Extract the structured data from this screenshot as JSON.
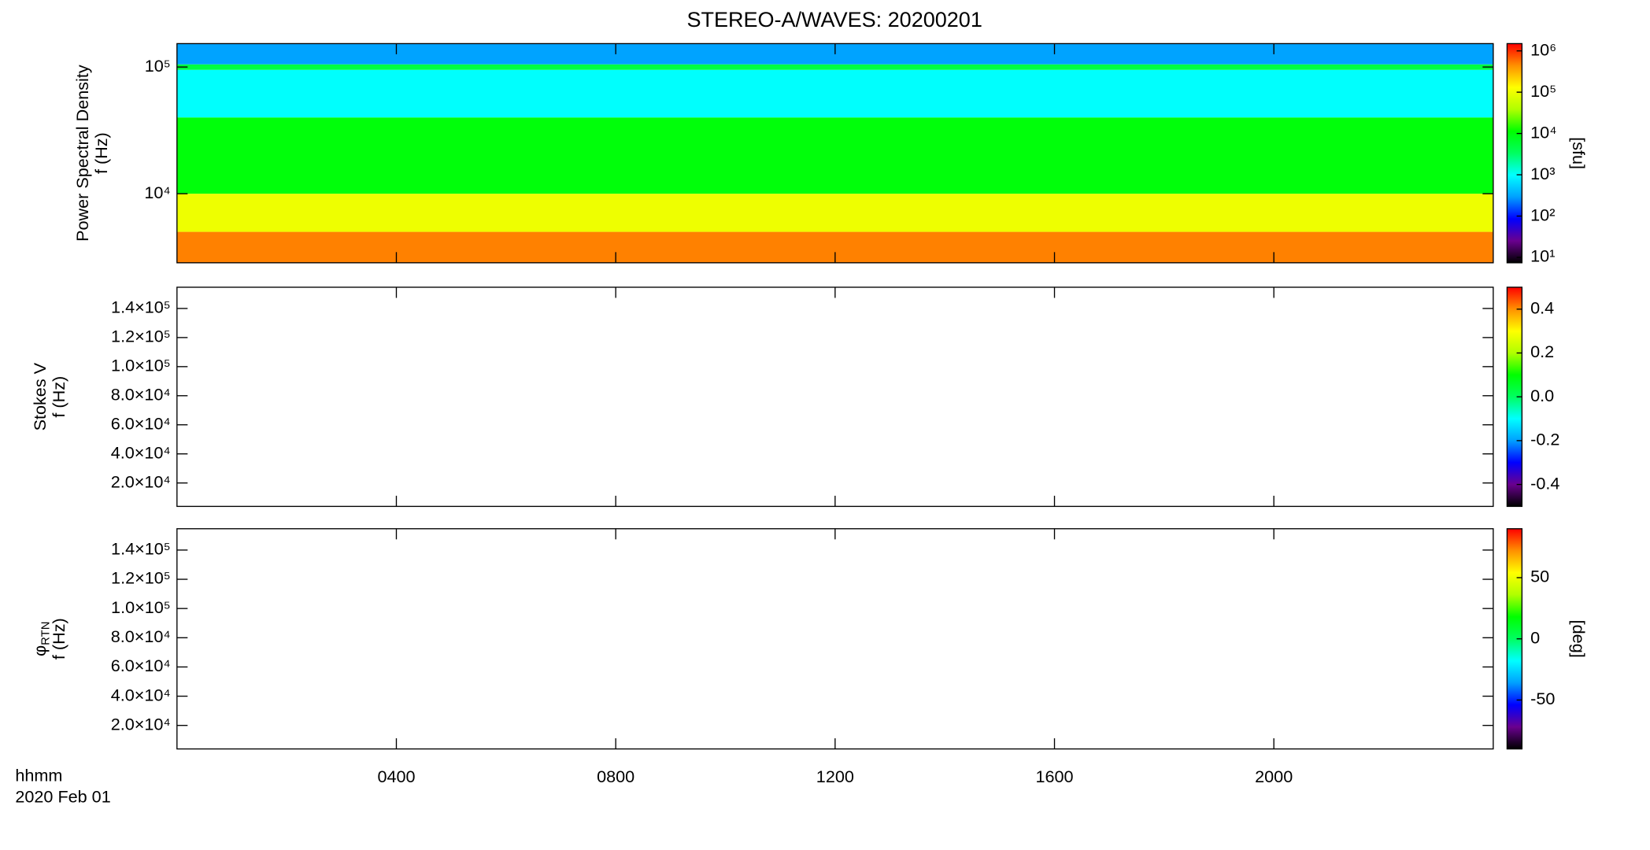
{
  "title": "STEREO-A/WAVES: 20200201",
  "x_label": "hhmm",
  "date_label": "2020 Feb 01",
  "colormap": [
    "#000000",
    "#6a008f",
    "#0000ff",
    "#00a0ff",
    "#00ffff",
    "#00ff60",
    "#00ff00",
    "#b0ff00",
    "#ffff00",
    "#ff9000",
    "#ff0000"
  ],
  "chart_data": [
    {
      "type": "heatmap",
      "ylabel_outer": "Power Spectral Density",
      "ylabel": "f (Hz)",
      "xlim": [
        0,
        24
      ],
      "ylim": [
        2850,
        153000
      ],
      "log_y": true,
      "yticks": [
        {
          "value": 10000,
          "label": "10⁴"
        },
        {
          "value": 100000,
          "label": "10⁵"
        }
      ],
      "y_bins": [
        2850,
        5000,
        10000,
        40000,
        95000,
        105000,
        153000
      ],
      "values": [
        500000,
        100000,
        10000,
        1000,
        5000,
        300
      ],
      "colorbar": {
        "label": "[sfu]",
        "log": true,
        "lim": [
          7.4,
          1500000
        ],
        "ticks": [
          {
            "value": 10,
            "label": "10¹"
          },
          {
            "value": 100,
            "label": "10²"
          },
          {
            "value": 1000,
            "label": "10³"
          },
          {
            "value": 10000,
            "label": "10⁴"
          },
          {
            "value": 100000,
            "label": "10⁵"
          },
          {
            "value": 1000000,
            "label": "10⁶"
          }
        ]
      }
    },
    {
      "type": "heatmap",
      "ylabel_outer": "Stokes V",
      "ylabel": "f (Hz)",
      "xlim": [
        0,
        24
      ],
      "ylim": [
        3900,
        154600
      ],
      "log_y": false,
      "yticks": [
        {
          "value": 20000,
          "label": "2.0×10⁴"
        },
        {
          "value": 40000,
          "label": "4.0×10⁴"
        },
        {
          "value": 60000,
          "label": "6.0×10⁴"
        },
        {
          "value": 80000,
          "label": "8.0×10⁴"
        },
        {
          "value": 100000,
          "label": "1.0×10⁵"
        },
        {
          "value": 120000,
          "label": "1.2×10⁵"
        },
        {
          "value": 140000,
          "label": "1.4×10⁵"
        }
      ],
      "colorbar": {
        "log": false,
        "lim": [
          -0.5,
          0.5
        ],
        "ticks": [
          -0.4,
          -0.2,
          {
            "value": 0,
            "label": "0.0"
          },
          0.2,
          0.4
        ]
      }
    },
    {
      "type": "heatmap",
      "ylabel_outer": "φ",
      "ylabel_sub": "RTN",
      "ylabel": "f (Hz)",
      "xlim": [
        0,
        24
      ],
      "ylim": [
        3900,
        154600
      ],
      "log_y": false,
      "yticks": [
        {
          "value": 20000,
          "label": "2.0×10⁴"
        },
        {
          "value": 40000,
          "label": "4.0×10⁴"
        },
        {
          "value": 60000,
          "label": "6.0×10⁴"
        },
        {
          "value": 80000,
          "label": "8.0×10⁴"
        },
        {
          "value": 100000,
          "label": "1.0×10⁵"
        },
        {
          "value": 120000,
          "label": "1.2×10⁵"
        },
        {
          "value": 140000,
          "label": "1.4×10⁵"
        }
      ],
      "xticks": [
        {
          "value": 4,
          "label": "0400"
        },
        {
          "value": 8,
          "label": "0800"
        },
        {
          "value": 12,
          "label": "1200"
        },
        {
          "value": 16,
          "label": "1600"
        },
        {
          "value": 20,
          "label": "2000"
        }
      ],
      "colorbar": {
        "label": "[deg]",
        "log": false,
        "lim": [
          -90,
          90
        ],
        "ticks": [
          -50,
          0,
          50
        ]
      }
    }
  ]
}
